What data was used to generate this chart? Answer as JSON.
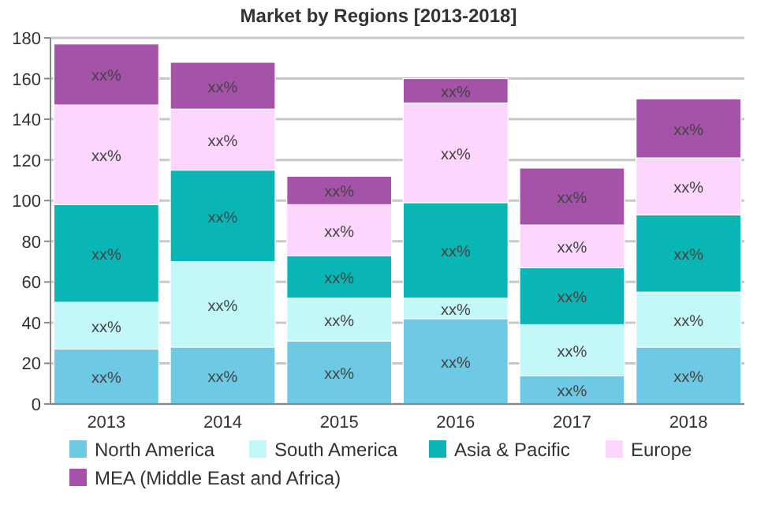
{
  "chart_data": {
    "type": "bar",
    "title": "Market by Regions [2013-2018]",
    "stacked": true,
    "categories": [
      "2013",
      "2014",
      "2015",
      "2016",
      "2017",
      "2018"
    ],
    "series": [
      {
        "name": "North America",
        "color": "#6ecae4",
        "values": [
          27,
          28,
          31,
          42,
          14,
          28
        ],
        "value_labels": [
          "xx%",
          "xx%",
          "xx%",
          "xx%",
          "xx%",
          "xx%"
        ]
      },
      {
        "name": "South America",
        "color": "#c4f7f8",
        "values": [
          23,
          42,
          21,
          10,
          25,
          27
        ],
        "value_labels": [
          "xx%",
          "xx%",
          "xx%",
          "xx%",
          "xx%",
          "xx%"
        ]
      },
      {
        "name": "Asia & Pacific",
        "color": "#0ab5b5",
        "values": [
          48,
          45,
          21,
          47,
          28,
          38
        ],
        "value_labels": [
          "xx%",
          "xx%",
          "xx%",
          "xx%",
          "xx%",
          "xx%"
        ]
      },
      {
        "name": "Europe",
        "color": "#fcd6fc",
        "values": [
          49,
          30,
          25,
          49,
          21,
          28
        ],
        "value_labels": [
          "xx%",
          "xx%",
          "xx%",
          "xx%",
          "xx%",
          "xx%"
        ]
      },
      {
        "name": "MEA (Middle East and Africa)",
        "color": "#a453a8",
        "values": [
          30,
          23,
          14,
          12,
          28,
          29
        ],
        "value_labels": [
          "xx%",
          "xx%",
          "xx%",
          "xx%",
          "xx%",
          "xx%"
        ]
      }
    ],
    "ylim": [
      0,
      180
    ],
    "yticks": [
      0,
      20,
      40,
      60,
      80,
      100,
      120,
      140,
      160,
      180
    ],
    "grid": "y",
    "legend": "bottom"
  }
}
